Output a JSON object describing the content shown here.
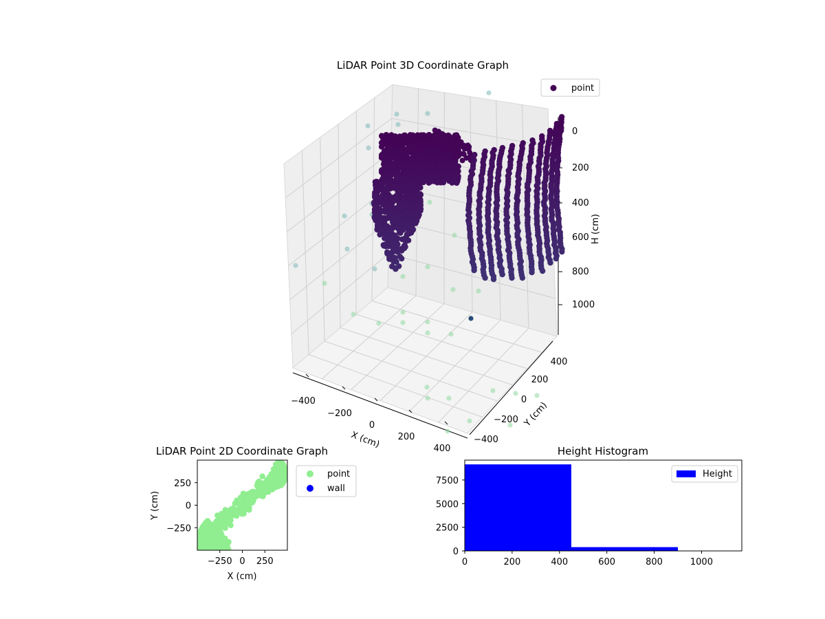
{
  "figure": {
    "bg": "#ffffff"
  },
  "chart_data": [
    {
      "type": "scatter3d",
      "title": "LiDAR Point 3D Coordinate Graph",
      "xlabel": "X (cm)",
      "ylabel": "Y (cm)",
      "zlabel": "H (cm)",
      "xticks": [
        "−400",
        "−200",
        "0",
        "200",
        "400"
      ],
      "yticks": [
        "−400",
        "−200",
        "0",
        "200",
        "400"
      ],
      "zticks": [
        "0",
        "200",
        "400",
        "600",
        "800",
        "1000"
      ],
      "xlim": [
        -500,
        500
      ],
      "ylim": [
        -500,
        500
      ],
      "zlim": [
        0,
        1100
      ],
      "zaxis_inverted": true,
      "colormap": "viridis",
      "legend": {
        "placement": "top-right",
        "entries": [
          "point"
        ]
      },
      "series": [
        {
          "name": "point",
          "notes_points": "dense point cloud: left block of points near X −300..−50 and a right block of vertical arcs near X 0..400, heights mostly 0..800",
          "color_top": "#440154"
        }
      ]
    },
    {
      "type": "scatter",
      "title": "LiDAR Point 2D Coordinate Graph",
      "xlabel": "X (cm)",
      "ylabel": "Y (cm)",
      "xticks": [
        "−250",
        "0",
        "250"
      ],
      "yticks": [
        "250",
        "0",
        "−250"
      ],
      "xlim": [
        -500,
        500
      ],
      "ylim": [
        -500,
        500
      ],
      "legend": {
        "placement": "outside-right",
        "entries": [
          "point",
          "wall"
        ]
      },
      "series": [
        {
          "name": "point",
          "color": "#90ee90"
        },
        {
          "name": "wall",
          "color": "#0000ff"
        }
      ]
    },
    {
      "type": "bar",
      "title": "Height Histogram",
      "xticks": [
        "0",
        "200",
        "400",
        "600",
        "800",
        "1000"
      ],
      "yticks": [
        "0",
        "2500",
        "5000",
        "7500"
      ],
      "xlim": [
        0,
        1170
      ],
      "ylim": [
        0,
        9600
      ],
      "bins": [
        {
          "x0": 0,
          "x1": 450,
          "count": 9150
        },
        {
          "x0": 450,
          "x1": 900,
          "count": 400
        },
        {
          "x0": 900,
          "x1": 1170,
          "count": 0
        }
      ],
      "color": "#0000ff",
      "legend": {
        "placement": "top-right",
        "entries": [
          "Height"
        ]
      }
    }
  ]
}
